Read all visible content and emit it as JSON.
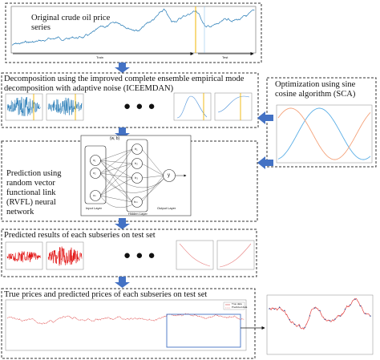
{
  "colors": {
    "border": "#333333",
    "arrow": "#4472c4",
    "price_line": "#1f77b4",
    "imf_blue": "#1f77b4",
    "marker_orange": "#f0b400",
    "pred_red": "#e00000",
    "sine_blue": "#5aaee6",
    "sine_orange": "#f4a27a",
    "highlight_box": "#4472c4"
  },
  "panels": {
    "original": {
      "title": "Original crude oil price series",
      "train_label": "Train",
      "test_label": "Test"
    },
    "decomposition": {
      "title": "Decomposition using the improved complete ensemble empirical mode decomposition with adaptive noise (ICEEMDAN)",
      "ellipsis": "● ● ●"
    },
    "optimization": {
      "title": "Optimization using sine cosine algorithm (SCA)"
    },
    "prediction": {
      "title": "Prediction using random vector functional link (RVFL) neural network",
      "weights_label": "(w, b)",
      "input_layer_label": "Input Layer",
      "hidden_layer_label": "Hidden Layer",
      "output_layer_label": "Output Layer",
      "input_nodes": [
        "x₁",
        "x₂",
        "xₙ"
      ],
      "hidden_nodes": [
        "h₁",
        "h₂",
        "h₃",
        "hₘ"
      ],
      "output_node": "y"
    },
    "predicted": {
      "title": "Predicted results of each subseries on test set",
      "ellipsis": "● ● ●"
    },
    "final": {
      "title": "True prices and predicted prices of each subseries on test set",
      "legend": [
        "True data",
        "Predicted data"
      ]
    }
  }
}
